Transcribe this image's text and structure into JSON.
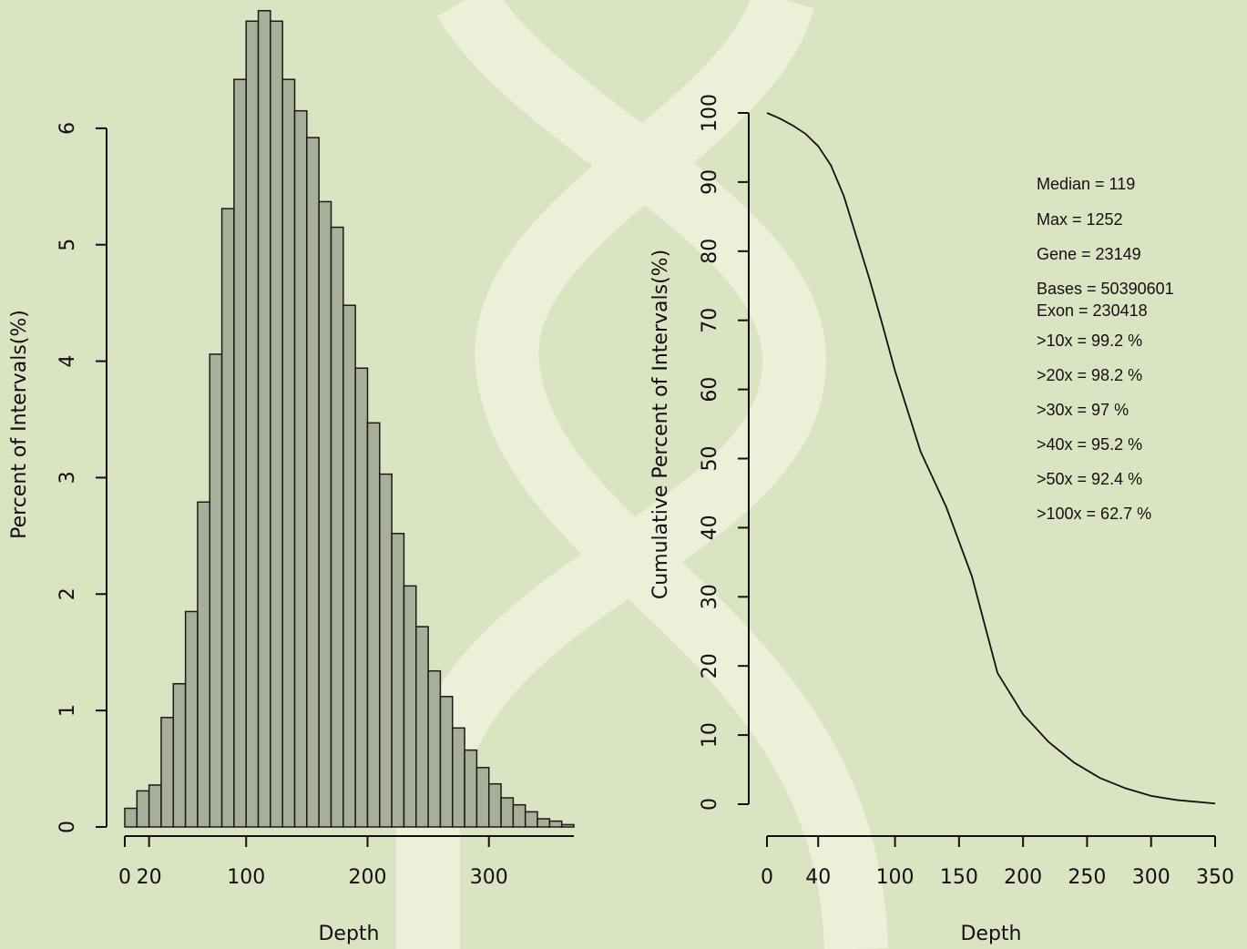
{
  "chart_data": [
    {
      "type": "histogram",
      "xlabel": "Depth",
      "ylabel": "Percent of Intervals(%)",
      "bins": [
        0,
        10,
        20,
        30,
        40,
        50,
        60,
        70,
        80,
        90,
        100,
        110,
        120,
        130,
        140,
        150,
        160,
        170,
        180,
        190,
        200,
        210,
        220,
        230,
        240,
        250,
        260,
        270,
        280,
        290,
        300,
        310,
        320,
        330,
        340,
        350,
        360,
        370
      ],
      "values": [
        0.16,
        0.31,
        0.36,
        0.94,
        1.23,
        1.85,
        2.79,
        4.06,
        5.31,
        6.42,
        6.92,
        7.01,
        6.92,
        6.42,
        6.15,
        5.92,
        5.37,
        5.15,
        4.48,
        3.94,
        3.47,
        3.03,
        2.52,
        2.07,
        1.72,
        1.34,
        1.12,
        0.85,
        0.66,
        0.51,
        0.37,
        0.25,
        0.19,
        0.13,
        0.07,
        0.05,
        0.02
      ],
      "color": "#a8af98",
      "xlim": [
        0,
        370
      ],
      "xticks": [
        0,
        20,
        100,
        200,
        300
      ],
      "ylim": [
        0,
        7
      ],
      "yticks": [
        0,
        1,
        2,
        3,
        4,
        5,
        6
      ]
    },
    {
      "type": "line",
      "xlabel": "Depth",
      "ylabel": "Cumulative Percent of Intervals(%)",
      "x": [
        0,
        10,
        20,
        30,
        40,
        50,
        60,
        70,
        80,
        90,
        100,
        120,
        140,
        160,
        180,
        200,
        220,
        240,
        260,
        280,
        300,
        320,
        350
      ],
      "values": [
        100,
        99.2,
        98.2,
        97,
        95.2,
        92.4,
        88,
        82,
        76,
        69.5,
        62.7,
        51,
        43,
        33,
        19,
        13,
        9,
        6,
        3.8,
        2.3,
        1.2,
        0.6,
        0.1
      ],
      "color": "#111111",
      "xlim": [
        0,
        350
      ],
      "xticks": [
        0,
        40,
        100,
        150,
        200,
        250,
        300,
        350
      ],
      "ylim": [
        0,
        100
      ],
      "yticks": [
        0,
        10,
        20,
        30,
        40,
        50,
        60,
        70,
        80,
        90,
        100
      ],
      "annotations": [
        "Median = 119",
        "Max = 1252",
        "Gene = 23149",
        "Bases = 50390601",
        "Exon = 230418",
        ">10x = 99.2 %",
        ">20x = 98.2 %",
        ">30x = 97 %",
        ">40x = 95.2 %",
        ">50x = 92.4 %",
        ">100x = 62.7 %"
      ]
    }
  ]
}
